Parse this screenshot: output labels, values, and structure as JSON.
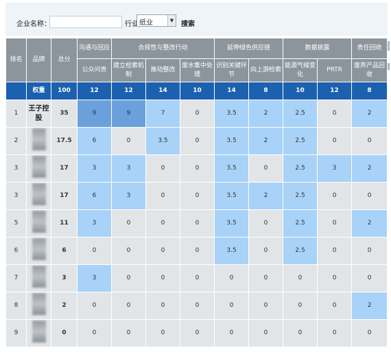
{
  "search": {
    "company_label": "企业名称：",
    "company_value": "",
    "industry_label": "行业：",
    "industry_value": "纸业",
    "search_button": "搜索"
  },
  "header": {
    "rank": "排名",
    "brand": "品牌",
    "total": "总分",
    "groups": [
      {
        "label": "沟通与回应",
        "span": 1,
        "subs": [
          "公众问责"
        ]
      },
      {
        "label": "合规性与整改行动",
        "span": 3,
        "subs": [
          "建立检索机制",
          "推动整改",
          "废水集中处理"
        ]
      },
      {
        "label": "延伸绿色供应链",
        "span": 2,
        "subs": [
          "识别关键环节",
          "向上游检索"
        ]
      },
      {
        "label": "数据披露",
        "span": 2,
        "subs": [
          "能源气候变化",
          "PRTR"
        ]
      },
      {
        "label": "责任回收",
        "span": 1,
        "subs": [
          "废弃产品回收"
        ]
      }
    ]
  },
  "weights": {
    "label": "权重",
    "total": "100",
    "values": [
      "12",
      "12",
      "14",
      "10",
      "14",
      "8",
      "10",
      "12",
      "8"
    ]
  },
  "rows": [
    {
      "rank": "1",
      "brand": "王子控股",
      "brand_visible": true,
      "total": "35",
      "values": [
        "9",
        "9",
        "7",
        "0",
        "3.5",
        "2",
        "2.5",
        "0",
        "2"
      ],
      "hl": [
        2,
        2,
        1,
        0,
        1,
        1,
        1,
        0,
        1
      ]
    },
    {
      "rank": "2",
      "brand": "",
      "brand_visible": false,
      "total": "17.5",
      "values": [
        "6",
        "0",
        "3.5",
        "0",
        "3.5",
        "2",
        "2.5",
        "0",
        "0"
      ],
      "hl": [
        1,
        0,
        1,
        0,
        1,
        1,
        1,
        0,
        0
      ]
    },
    {
      "rank": "3",
      "brand": "",
      "brand_visible": false,
      "total": "17",
      "values": [
        "3",
        "3",
        "0",
        "0",
        "3.5",
        "0",
        "2.5",
        "3",
        "2"
      ],
      "hl": [
        1,
        1,
        0,
        0,
        1,
        0,
        1,
        1,
        1
      ]
    },
    {
      "rank": "3",
      "brand": "",
      "brand_visible": false,
      "total": "17",
      "values": [
        "6",
        "3",
        "0",
        "0",
        "3.5",
        "2",
        "2.5",
        "0",
        "0"
      ],
      "hl": [
        1,
        1,
        0,
        0,
        1,
        1,
        1,
        0,
        0
      ]
    },
    {
      "rank": "5",
      "brand": "",
      "brand_visible": false,
      "total": "11",
      "values": [
        "3",
        "0",
        "0",
        "0",
        "3.5",
        "0",
        "2.5",
        "0",
        "2"
      ],
      "hl": [
        1,
        0,
        0,
        0,
        1,
        0,
        1,
        0,
        1
      ]
    },
    {
      "rank": "6",
      "brand": "",
      "brand_visible": false,
      "total": "6",
      "values": [
        "0",
        "0",
        "0",
        "0",
        "3.5",
        "0",
        "2.5",
        "0",
        "0"
      ],
      "hl": [
        0,
        0,
        0,
        0,
        1,
        0,
        1,
        0,
        0
      ]
    },
    {
      "rank": "7",
      "brand": "",
      "brand_visible": false,
      "total": "3",
      "values": [
        "3",
        "0",
        "0",
        "0",
        "0",
        "0",
        "0",
        "0",
        "0"
      ],
      "hl": [
        1,
        0,
        0,
        0,
        0,
        0,
        0,
        0,
        0
      ]
    },
    {
      "rank": "8",
      "brand": "",
      "brand_visible": false,
      "total": "2",
      "values": [
        "0",
        "0",
        "0",
        "0",
        "0",
        "0",
        "0",
        "0",
        "2"
      ],
      "hl": [
        0,
        0,
        0,
        0,
        0,
        0,
        0,
        0,
        1
      ]
    },
    {
      "rank": "9",
      "brand": "",
      "brand_visible": false,
      "total": "0",
      "values": [
        "0",
        "0",
        "0",
        "0",
        "0",
        "0",
        "0",
        "0",
        "0"
      ],
      "hl": [
        0,
        0,
        0,
        0,
        0,
        0,
        0,
        0,
        0
      ]
    }
  ],
  "colors": {
    "header_bg": "#8c959c",
    "weight_bg": "#1c60b0",
    "cell_bg": "#e2e5e8",
    "highlight": "#a8d2f8",
    "highlight_strong": "#6aa1dc"
  }
}
